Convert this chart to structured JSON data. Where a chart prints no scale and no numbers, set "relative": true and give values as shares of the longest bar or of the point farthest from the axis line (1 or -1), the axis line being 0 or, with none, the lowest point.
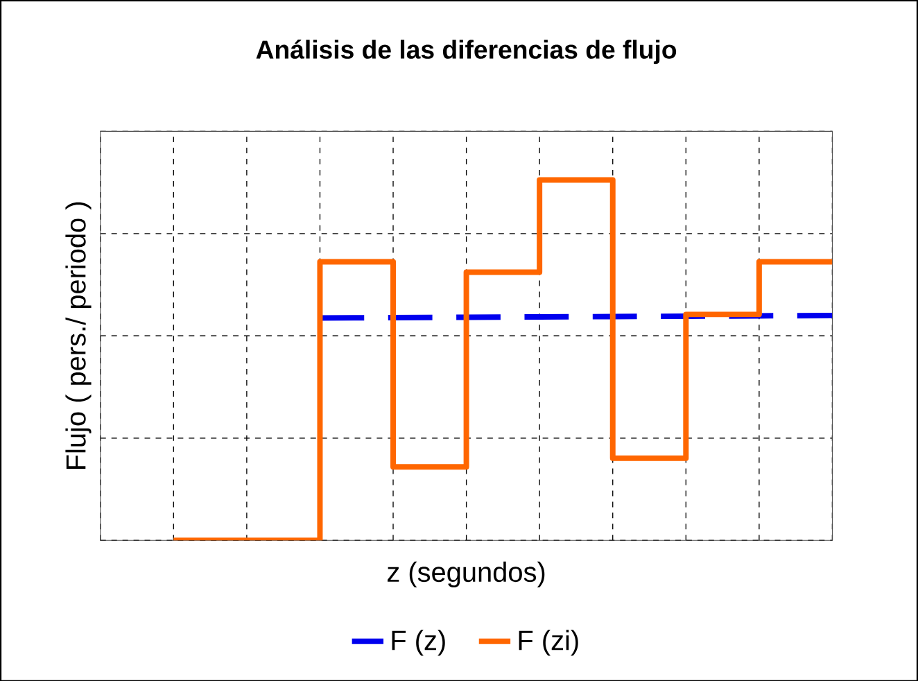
{
  "chart_data": {
    "type": "step",
    "title": "Análisis de las diferencias de flujo",
    "xlabel": "z  (segundos)",
    "ylabel": "Flujo  ( pers./ periodo )",
    "relative": true,
    "grid": true,
    "legend": "bottom",
    "categories": [
      null,
      null,
      null,
      null,
      null,
      null,
      null,
      null,
      null,
      null,
      null
    ],
    "series": [
      {
        "name": "F (z)",
        "type": "line",
        "line_style": "dashed",
        "color": "#0000ee",
        "values": [
          null,
          null,
          null,
          0.617,
          0.618,
          0.619,
          0.62,
          0.621,
          0.622,
          0.623,
          0.624
        ]
      },
      {
        "name": "F (zi)",
        "line_style": "solid",
        "color": "#ff6600",
        "values": [
          null,
          0,
          0,
          0.773,
          0.204,
          0.744,
          1,
          0.228,
          0.627,
          0.773,
          0.773
        ]
      }
    ]
  }
}
